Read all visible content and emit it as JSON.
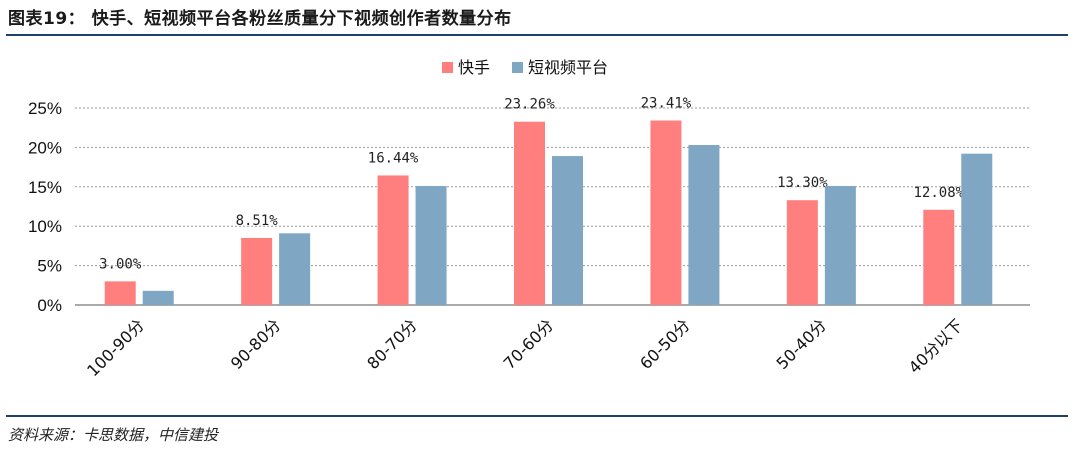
{
  "header": {
    "title": "图表19： 快手、短视频平台各粉丝质量分下视频创作者数量分布"
  },
  "footer": {
    "source": "资料来源：卡思数据，中信建投"
  },
  "chart_data": {
    "type": "bar",
    "categories": [
      "100-90分",
      "90-80分",
      "80-70分",
      "70-60分",
      "60-50分",
      "50-40分",
      "40分以下"
    ],
    "series": [
      {
        "name": "快手",
        "color": "#ff7f7f",
        "values": [
          3.0,
          8.51,
          16.44,
          23.26,
          23.41,
          13.3,
          12.08
        ],
        "labels": [
          "3.00%",
          "8.51%",
          "16.44%",
          "23.26%",
          "23.41%",
          "13.30%",
          "12.08%"
        ]
      },
      {
        "name": "短视频平台",
        "color": "#7fa6c2",
        "values": [
          1.8,
          9.1,
          15.1,
          18.9,
          20.3,
          15.1,
          19.2
        ]
      }
    ],
    "yticks": [
      "0%",
      "5%",
      "10%",
      "15%",
      "20%",
      "25%"
    ],
    "ylim": [
      0,
      25
    ],
    "grid": true,
    "legend": "top-center"
  }
}
